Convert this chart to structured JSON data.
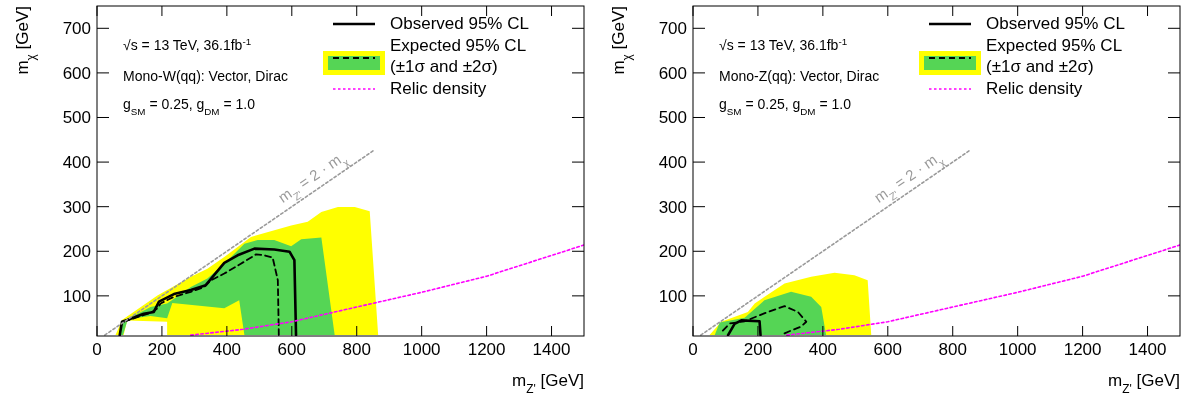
{
  "chart_data": [
    {
      "type": "line",
      "xlabel": "m$_{Z'}$ [GeV]",
      "ylabel": "m$_{χ}$ [GeV]",
      "xlim": [
        0,
        1500
      ],
      "ylim": [
        10,
        750
      ],
      "xticks": [
        0,
        200,
        400,
        600,
        800,
        1000,
        1200,
        1400
      ],
      "yticks": [
        100,
        200,
        300,
        400,
        500,
        600,
        700
      ],
      "legend": "top right",
      "grid": false,
      "annotations": [
        "√s = 13 TeV, 36.1fb$^{-1}$",
        "Mono-W(qq): Vector, Dirac",
        "g$_{SM}$ = 0.25, g$_{DM}$ = 1.0",
        "m$_{Z'}$ = 2 · m$_{χ}$"
      ],
      "series": [
        {
          "type": "area",
          "color": "#ffff00",
          "x": [
            57,
            77,
            165,
            186,
            289,
            340,
            392,
            474,
            598,
            649,
            691,
            742,
            794,
            840,
            866,
            216,
            216,
            93,
            82
          ],
          "values": [
            12,
            46,
            90,
            101,
            143,
            161,
            187,
            232,
            258,
            266,
            288,
            299,
            299,
            290,
            12,
            12,
            42,
            45,
            12
          ]
        },
        {
          "type": "area",
          "color": "#55d555",
          "x": [
            68,
            78,
            165,
            216,
            289,
            340,
            392,
            454,
            495,
            546,
            598,
            629,
            691,
            732,
            454,
            438,
            392,
            232,
            216,
            165,
            95,
            80
          ],
          "values": [
            12,
            42,
            75,
            83,
            120,
            139,
            172,
            217,
            225,
            225,
            211,
            227,
            231,
            12,
            12,
            90,
            72,
            84,
            50,
            55,
            48,
            12
          ]
        },
        {
          "type": "line",
          "name": "Observed 95% CL",
          "color": "#000000",
          "line_style": "solid",
          "x": [
            70,
            77,
            93,
            144,
            175,
            191,
            237,
            289,
            335,
            392,
            433,
            485,
            546,
            593,
            608,
            613
          ],
          "values": [
            12,
            42,
            46,
            60,
            64,
            87,
            104,
            113,
            124,
            174,
            191,
            206,
            204,
            199,
            180,
            12
          ]
        },
        {
          "type": "line",
          "name": "Expected 95% CL\n(±1σ and ±2σ)",
          "color": "#000000",
          "line_style": "dashed",
          "x": [
            82,
            165,
            186,
            196,
            237,
            289,
            330,
            351,
            392,
            443,
            490,
            515,
            541,
            557,
            560
          ],
          "values": [
            42,
            62,
            72,
            83,
            98,
            109,
            120,
            135,
            150,
            172,
            193,
            191,
            186,
            135,
            12
          ]
        },
        {
          "type": "line",
          "name": "Relic density",
          "color": "#ff00ff",
          "line_style": "dotted",
          "x": [
            289,
            450,
            600,
            800,
            1000,
            1200,
            1500
          ],
          "values": [
            12,
            25,
            42,
            75,
            108,
            144,
            214
          ]
        },
        {
          "type": "line",
          "color": "#9a9a9a",
          "line_style": "dotted",
          "x": [
            24,
            850
          ],
          "values": [
            12,
            425
          ]
        }
      ]
    },
    {
      "type": "line",
      "xlabel": "m$_{Z'}$ [GeV]",
      "ylabel": "m$_{χ}$ [GeV]",
      "xlim": [
        0,
        1500
      ],
      "ylim": [
        10,
        750
      ],
      "xticks": [
        0,
        200,
        400,
        600,
        800,
        1000,
        1200,
        1400
      ],
      "yticks": [
        100,
        200,
        300,
        400,
        500,
        600,
        700
      ],
      "legend": "top right",
      "grid": false,
      "annotations": [
        "√s = 13 TeV, 36.1fb$^{-1}$",
        "Mono-Z(qq): Vector, Dirac",
        "g$_{SM}$ = 0.25, g$_{DM}$ = 1.0",
        "m$_{Z'}$ = 2 · m$_{χ}$"
      ],
      "series": [
        {
          "type": "area",
          "color": "#ffff00",
          "x": [
            51,
            87,
            169,
            190,
            282,
            364,
            436,
            497,
            538,
            549
          ],
          "values": [
            12,
            42,
            64,
            83,
            128,
            143,
            152,
            146,
            135,
            12
          ]
        },
        {
          "type": "area",
          "color": "#55d555",
          "x": [
            67,
            82,
            159,
            220,
            302,
            364,
            395,
            410
          ],
          "values": [
            12,
            40,
            51,
            90,
            109,
            98,
            75,
            12
          ]
        },
        {
          "type": "line",
          "name": "Observed 95% CL",
          "color": "#000000",
          "line_style": "solid",
          "x": [
            108,
            128,
            149,
            205,
            208
          ],
          "values": [
            12,
            37,
            45,
            43,
            12
          ]
        },
        {
          "type": "line",
          "name": "Expected 95% CL\n(±1σ and ±2σ)",
          "color": "#000000",
          "line_style": "dashed",
          "x": [
            92,
            113,
            159,
            231,
            282,
            323,
            349,
            333,
            308,
            282
          ],
          "values": [
            22,
            38,
            43,
            64,
            77,
            64,
            42,
            31,
            24,
            16
          ]
        },
        {
          "type": "line",
          "name": "Relic density",
          "color": "#ff00ff",
          "line_style": "dotted",
          "x": [
            289,
            450,
            600,
            800,
            1000,
            1200,
            1500
          ],
          "values": [
            12,
            25,
            42,
            75,
            108,
            144,
            214
          ]
        },
        {
          "type": "line",
          "color": "#9a9a9a",
          "line_style": "dotted",
          "x": [
            24,
            850
          ],
          "values": [
            12,
            425
          ]
        }
      ]
    }
  ]
}
